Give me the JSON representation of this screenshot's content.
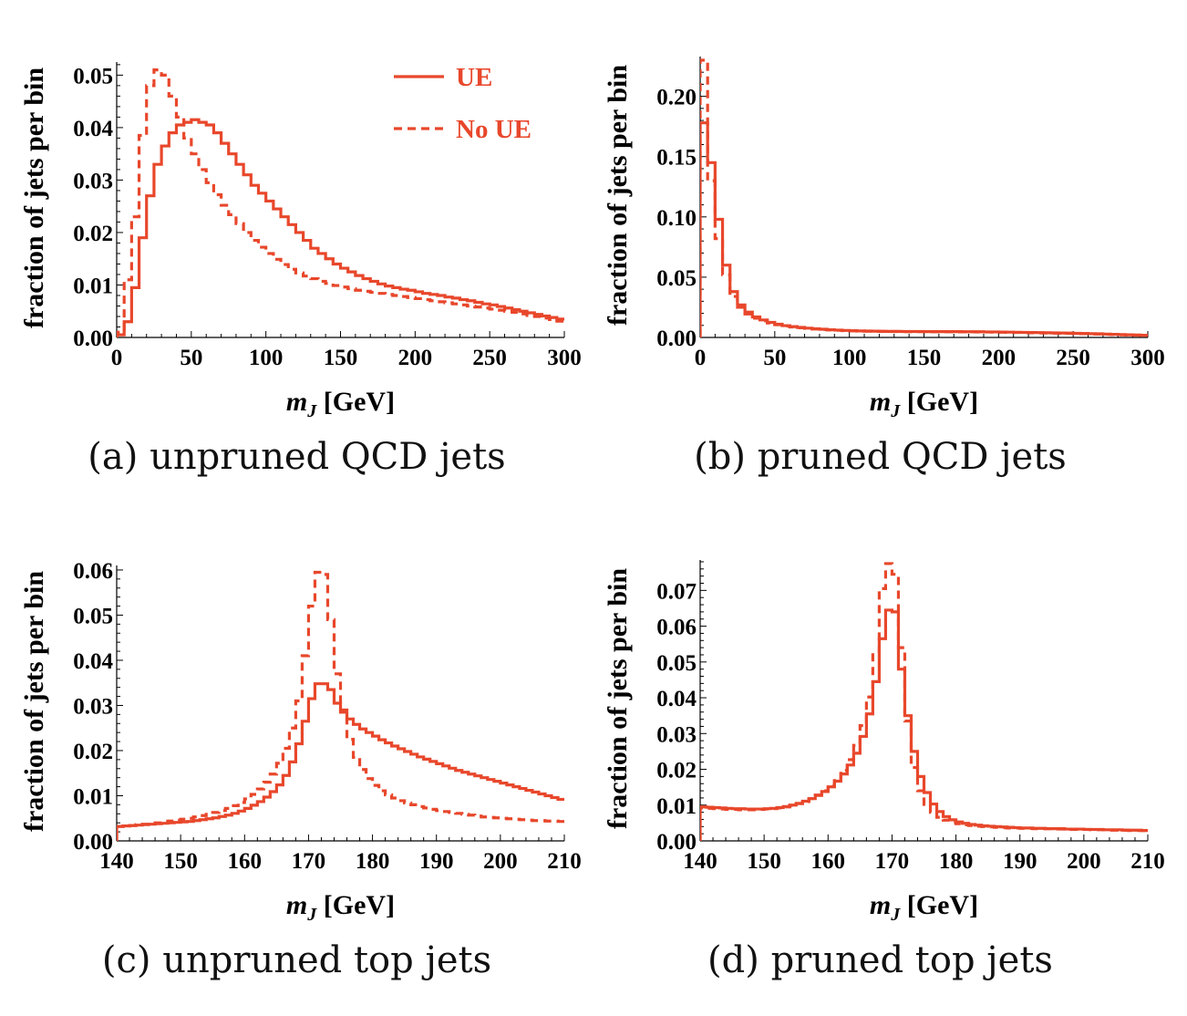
{
  "colors": {
    "series": "#e8472b",
    "axis": "#000000"
  },
  "legend": [
    {
      "label": "UE",
      "style": "solid"
    },
    {
      "label": "No UE",
      "style": "dashed"
    }
  ],
  "chart_data": [
    {
      "id": "a",
      "type": "line",
      "caption": "(a) unpruned QCD jets",
      "xlabel_main": "m",
      "xlabel_sub": "J",
      "xlabel_unit": " [GeV]",
      "ylabel": "fraction of jets per bin",
      "xlim": [
        0,
        300
      ],
      "ylim": [
        0,
        0.0525
      ],
      "xticks": [
        0,
        50,
        100,
        150,
        200,
        250,
        300
      ],
      "yticks": [
        0.0,
        0.01,
        0.02,
        0.03,
        0.04,
        0.05
      ],
      "yformat": 2,
      "bin_width": 5,
      "legend_location": "top-right",
      "series": [
        {
          "name": "UE",
          "style": "solid",
          "values": [
            0.0005,
            0.003,
            0.0095,
            0.019,
            0.027,
            0.033,
            0.0365,
            0.039,
            0.0405,
            0.041,
            0.0415,
            0.041,
            0.0405,
            0.039,
            0.037,
            0.035,
            0.033,
            0.031,
            0.029,
            0.0275,
            0.026,
            0.0245,
            0.023,
            0.0215,
            0.02,
            0.0185,
            0.017,
            0.016,
            0.015,
            0.014,
            0.0132,
            0.0125,
            0.0118,
            0.0112,
            0.0107,
            0.0102,
            0.0098,
            0.0095,
            0.0092,
            0.009,
            0.0087,
            0.0084,
            0.0082,
            0.008,
            0.0077,
            0.0075,
            0.0072,
            0.007,
            0.0067,
            0.0064,
            0.0062,
            0.0059,
            0.0056,
            0.0053,
            0.005,
            0.0047,
            0.0044,
            0.0041,
            0.0038,
            0.0035
          ]
        },
        {
          "name": "No UE",
          "style": "dashed",
          "values": [
            0.001,
            0.011,
            0.023,
            0.0385,
            0.048,
            0.051,
            0.05,
            0.046,
            0.042,
            0.038,
            0.035,
            0.032,
            0.0295,
            0.0272,
            0.0252,
            0.0234,
            0.0217,
            0.02,
            0.0185,
            0.0172,
            0.016,
            0.0149,
            0.0139,
            0.013,
            0.0123,
            0.0117,
            0.0112,
            0.0107,
            0.0103,
            0.0099,
            0.0096,
            0.0093,
            0.009,
            0.0088,
            0.0086,
            0.0084,
            0.0082,
            0.008,
            0.0078,
            0.0076,
            0.0074,
            0.0072,
            0.007,
            0.0068,
            0.0066,
            0.0064,
            0.0062,
            0.006,
            0.0058,
            0.0056,
            0.0054,
            0.0052,
            0.005,
            0.0048,
            0.0045,
            0.0042,
            0.004,
            0.0037,
            0.0034,
            0.0031
          ]
        }
      ]
    },
    {
      "id": "b",
      "type": "line",
      "caption": "(b) pruned QCD jets",
      "xlabel_main": "m",
      "xlabel_sub": "J",
      "xlabel_unit": " [GeV]",
      "ylabel": "fraction of jets per bin",
      "xlim": [
        0,
        300
      ],
      "ylim": [
        0,
        0.233
      ],
      "xticks": [
        0,
        50,
        100,
        150,
        200,
        250,
        300
      ],
      "yticks": [
        0.0,
        0.05,
        0.1,
        0.15,
        0.2
      ],
      "yformat": 2,
      "bin_width": 5,
      "series": [
        {
          "name": "UE",
          "style": "solid",
          "values": [
            0.178,
            0.145,
            0.098,
            0.06,
            0.038,
            0.027,
            0.021,
            0.017,
            0.0145,
            0.0125,
            0.011,
            0.0098,
            0.009,
            0.0083,
            0.0077,
            0.0072,
            0.0068,
            0.0064,
            0.0061,
            0.0058,
            0.0056,
            0.0054,
            0.0053,
            0.0052,
            0.0051,
            0.005,
            0.005,
            0.0049,
            0.0049,
            0.0049,
            0.0048,
            0.0048,
            0.0048,
            0.0048,
            0.0048,
            0.0047,
            0.0047,
            0.0047,
            0.0046,
            0.0046,
            0.0045,
            0.0044,
            0.0043,
            0.0042,
            0.0041,
            0.004,
            0.0039,
            0.0038,
            0.0037,
            0.0036,
            0.0034,
            0.0033,
            0.0031,
            0.003,
            0.0028,
            0.0026,
            0.0024,
            0.0022,
            0.002,
            0.0018
          ]
        },
        {
          "name": "No UE",
          "style": "dashed",
          "values": [
            0.23,
            0.13,
            0.082,
            0.052,
            0.034,
            0.025,
            0.0195,
            0.016,
            0.0138,
            0.012,
            0.0106,
            0.0095,
            0.0087,
            0.008,
            0.0075,
            0.007,
            0.0066,
            0.0062,
            0.0059,
            0.0057,
            0.0055,
            0.0053,
            0.0052,
            0.0051,
            0.005,
            0.0049,
            0.0049,
            0.0048,
            0.0048,
            0.0048,
            0.0047,
            0.0047,
            0.0047,
            0.0047,
            0.0046,
            0.0046,
            0.0046,
            0.0045,
            0.0045,
            0.0044,
            0.0043,
            0.0042,
            0.0041,
            0.004,
            0.0039,
            0.0038,
            0.0037,
            0.0036,
            0.0035,
            0.0034,
            0.0032,
            0.0031,
            0.0029,
            0.0028,
            0.0026,
            0.0024,
            0.0022,
            0.002,
            0.0019,
            0.0017
          ]
        }
      ]
    },
    {
      "id": "c",
      "type": "line",
      "caption": "(c) unpruned top jets",
      "xlabel_main": "m",
      "xlabel_sub": "J",
      "xlabel_unit": " [GeV]",
      "ylabel": "fraction of jets per bin",
      "xlim": [
        140,
        210
      ],
      "ylim": [
        0,
        0.061
      ],
      "xticks": [
        140,
        150,
        160,
        170,
        180,
        190,
        200,
        210
      ],
      "yticks": [
        0.0,
        0.01,
        0.02,
        0.03,
        0.04,
        0.05,
        0.06
      ],
      "yformat": 2,
      "bin_width": 1,
      "series": [
        {
          "name": "UE",
          "style": "solid",
          "values": [
            0.0032,
            0.0033,
            0.0034,
            0.0035,
            0.0036,
            0.0037,
            0.0038,
            0.0039,
            0.004,
            0.0041,
            0.0042,
            0.0043,
            0.0045,
            0.0047,
            0.0049,
            0.0051,
            0.0054,
            0.0057,
            0.0061,
            0.0066,
            0.0072,
            0.0079,
            0.0087,
            0.0097,
            0.0109,
            0.0124,
            0.0145,
            0.0175,
            0.0215,
            0.0265,
            0.0315,
            0.0348,
            0.0348,
            0.0335,
            0.0305,
            0.0285,
            0.027,
            0.0258,
            0.0248,
            0.024,
            0.0232,
            0.0224,
            0.0217,
            0.021,
            0.0204,
            0.0198,
            0.0192,
            0.0186,
            0.0181,
            0.0176,
            0.0171,
            0.0166,
            0.0161,
            0.0156,
            0.0152,
            0.0148,
            0.0144,
            0.014,
            0.0136,
            0.0132,
            0.0128,
            0.0124,
            0.012,
            0.0116,
            0.0112,
            0.0108,
            0.0104,
            0.01,
            0.0096,
            0.0092
          ]
        },
        {
          "name": "No UE",
          "style": "dashed",
          "values": [
            0.0032,
            0.0033,
            0.0034,
            0.0036,
            0.0037,
            0.0039,
            0.004,
            0.0042,
            0.0044,
            0.0046,
            0.0048,
            0.005,
            0.0053,
            0.0056,
            0.0059,
            0.0063,
            0.0067,
            0.0072,
            0.0078,
            0.0085,
            0.0093,
            0.0103,
            0.0115,
            0.013,
            0.0148,
            0.0172,
            0.0205,
            0.025,
            0.031,
            0.041,
            0.052,
            0.0595,
            0.059,
            0.049,
            0.037,
            0.029,
            0.0225,
            0.0185,
            0.0158,
            0.0138,
            0.0123,
            0.0111,
            0.0102,
            0.0095,
            0.0089,
            0.0084,
            0.008,
            0.0076,
            0.0073,
            0.007,
            0.0067,
            0.0065,
            0.0063,
            0.0061,
            0.0059,
            0.0057,
            0.0055,
            0.0053,
            0.0052,
            0.0051,
            0.005,
            0.0049,
            0.0048,
            0.0047,
            0.0046,
            0.0045,
            0.0045,
            0.0044,
            0.0044,
            0.0043
          ]
        }
      ]
    },
    {
      "id": "d",
      "type": "line",
      "caption": "(d) pruned top jets",
      "xlabel_main": "m",
      "xlabel_sub": "J",
      "xlabel_unit": " [GeV]",
      "ylabel": "fraction of jets per bin",
      "xlim": [
        140,
        210
      ],
      "ylim": [
        0,
        0.0785
      ],
      "xticks": [
        140,
        150,
        160,
        170,
        180,
        190,
        200,
        210
      ],
      "yticks": [
        0.0,
        0.01,
        0.02,
        0.03,
        0.04,
        0.05,
        0.06,
        0.07
      ],
      "yformat": 2,
      "bin_width": 1,
      "series": [
        {
          "name": "UE",
          "style": "solid",
          "values": [
            0.0095,
            0.0094,
            0.0093,
            0.0092,
            0.0091,
            0.009,
            0.009,
            0.0089,
            0.0089,
            0.0089,
            0.009,
            0.0091,
            0.0093,
            0.0096,
            0.01,
            0.0105,
            0.0111,
            0.0118,
            0.0127,
            0.0138,
            0.0151,
            0.0167,
            0.0187,
            0.0212,
            0.0245,
            0.0292,
            0.0355,
            0.0445,
            0.0565,
            0.0645,
            0.064,
            0.048,
            0.035,
            0.025,
            0.018,
            0.0135,
            0.0103,
            0.0082,
            0.0068,
            0.0059,
            0.0053,
            0.0049,
            0.0046,
            0.0044,
            0.0042,
            0.0041,
            0.004,
            0.0039,
            0.0038,
            0.0037,
            0.0036,
            0.0036,
            0.0035,
            0.0035,
            0.0034,
            0.0034,
            0.0034,
            0.0033,
            0.0033,
            0.0033,
            0.0032,
            0.0032,
            0.0032,
            0.0031,
            0.0031,
            0.0031,
            0.003,
            0.003,
            0.003,
            0.0029
          ]
        },
        {
          "name": "No UE",
          "style": "dashed",
          "values": [
            0.0092,
            0.0091,
            0.009,
            0.0089,
            0.0088,
            0.0088,
            0.0087,
            0.0087,
            0.0087,
            0.0088,
            0.0089,
            0.009,
            0.0092,
            0.0095,
            0.0099,
            0.0104,
            0.011,
            0.0118,
            0.0128,
            0.014,
            0.0155,
            0.0174,
            0.0197,
            0.0227,
            0.0267,
            0.0322,
            0.0402,
            0.0525,
            0.0705,
            0.0775,
            0.0745,
            0.054,
            0.0335,
            0.0205,
            0.014,
            0.0102,
            0.008,
            0.0066,
            0.0058,
            0.0052,
            0.0048,
            0.0045,
            0.0043,
            0.0041,
            0.004,
            0.0039,
            0.0038,
            0.0037,
            0.0036,
            0.0036,
            0.0035,
            0.0035,
            0.0034,
            0.0034,
            0.0034,
            0.0033,
            0.0033,
            0.0033,
            0.0032,
            0.0032,
            0.0032,
            0.0031,
            0.0031,
            0.0031,
            0.003,
            0.003,
            0.003,
            0.0029,
            0.0029,
            0.0029
          ]
        }
      ]
    }
  ]
}
